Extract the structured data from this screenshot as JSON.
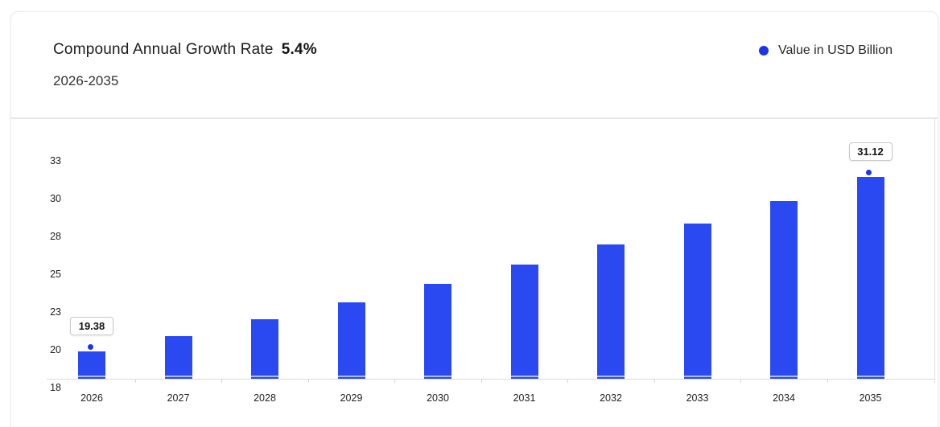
{
  "header": {
    "title": "Compound Annual Growth Rate",
    "cagr": "5.4%",
    "subtitle": "2026-2035",
    "legend": {
      "label": "Value in USD Billion",
      "dot_color": "#1a36e6"
    }
  },
  "chart_data": {
    "type": "bar",
    "title": "Compound Annual Growth Rate 5.4%",
    "subtitle": "2026-2035",
    "categories": [
      "2026",
      "2027",
      "2028",
      "2029",
      "2030",
      "2031",
      "2032",
      "2033",
      "2034",
      "2035"
    ],
    "series": [
      {
        "name": "Value in USD Billion",
        "values": [
          19.38,
          20.43,
          21.53,
          22.69,
          23.92,
          25.21,
          26.57,
          28.01,
          29.52,
          31.12
        ]
      }
    ],
    "data_labels": [
      {
        "index": 0,
        "text": "19.38"
      },
      {
        "index": 9,
        "text": "31.12"
      }
    ],
    "ylabel": "Value in USD Billion",
    "y_tick_labels": [
      "33",
      "30",
      "28",
      "25",
      "23",
      "20",
      "18"
    ],
    "y_axis_range": [
      18,
      33
    ],
    "grid": false,
    "legend_position": "top-right",
    "bar_color": "#2b49f0",
    "bar_bottom_stripe_color": "#a6bcf7",
    "marker_color": "#1a36e6",
    "axis_color": "#dbdbdb"
  }
}
